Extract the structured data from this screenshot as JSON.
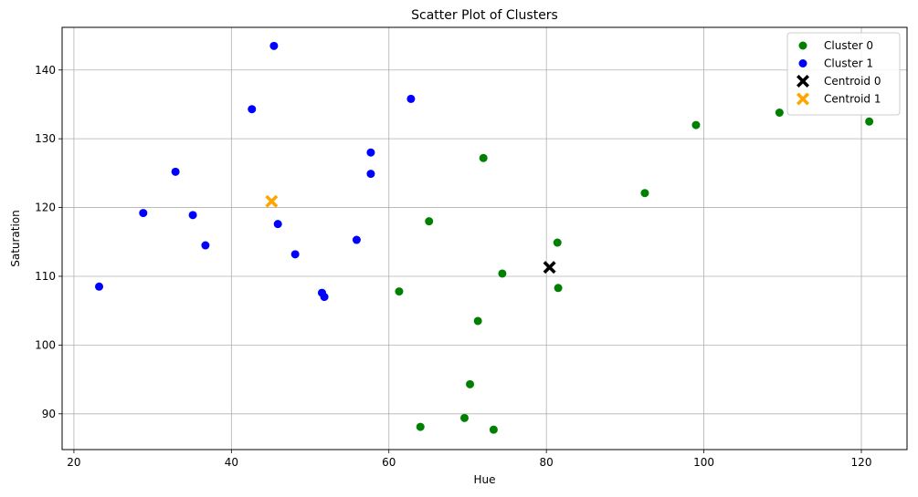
{
  "chart_data": {
    "type": "scatter",
    "title": "Scatter Plot of Clusters",
    "xlabel": "Hue",
    "ylabel": "Saturation",
    "xlim": [
      18.5,
      125.8
    ],
    "ylim": [
      84.8,
      146.2
    ],
    "xticks": [
      20,
      40,
      60,
      80,
      100,
      120
    ],
    "yticks": [
      90,
      100,
      110,
      120,
      130,
      140
    ],
    "grid": true,
    "legend_position": "top-right",
    "series": [
      {
        "name": "Cluster 0",
        "color": "#008000",
        "marker": "circle",
        "points": [
          [
            121,
            132.5
          ],
          [
            109.6,
            133.8
          ],
          [
            99,
            132
          ],
          [
            92.5,
            122.1
          ],
          [
            72,
            127.2
          ],
          [
            65.1,
            118
          ],
          [
            81.4,
            114.9
          ],
          [
            74.4,
            110.4
          ],
          [
            81.5,
            108.3
          ],
          [
            61.3,
            107.8
          ],
          [
            71.3,
            103.5
          ],
          [
            70.3,
            94.3
          ],
          [
            69.6,
            89.4
          ],
          [
            64,
            88.1
          ],
          [
            73.3,
            87.7
          ]
        ]
      },
      {
        "name": "Cluster 1",
        "color": "#0000ff",
        "marker": "circle",
        "points": [
          [
            45.4,
            143.5
          ],
          [
            62.8,
            135.8
          ],
          [
            42.6,
            134.3
          ],
          [
            57.7,
            128
          ],
          [
            57.7,
            124.9
          ],
          [
            32.9,
            125.2
          ],
          [
            28.8,
            119.2
          ],
          [
            35.1,
            118.9
          ],
          [
            45.9,
            117.6
          ],
          [
            36.7,
            114.5
          ],
          [
            55.9,
            115.3
          ],
          [
            48.1,
            113.2
          ],
          [
            23.2,
            108.5
          ],
          [
            51.5,
            107.6
          ],
          [
            51.8,
            107
          ]
        ]
      },
      {
        "name": "Centroid 0",
        "color": "#000000",
        "marker": "x",
        "points": [
          [
            80.4,
            111.3
          ]
        ]
      },
      {
        "name": "Centroid 1",
        "color": "#ffa500",
        "marker": "x",
        "points": [
          [
            45.1,
            120.9
          ]
        ]
      }
    ]
  }
}
